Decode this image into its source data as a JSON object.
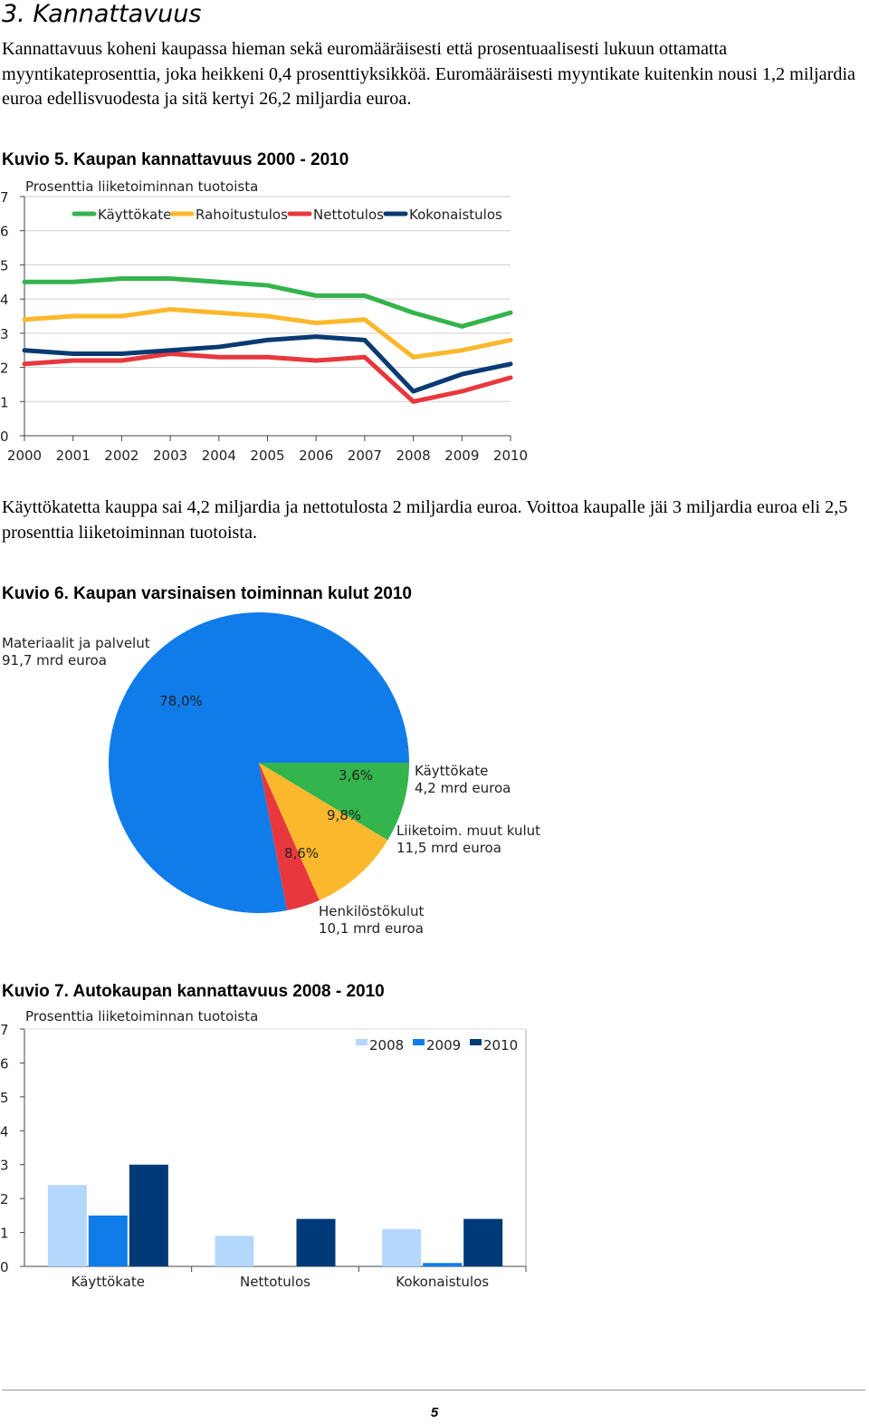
{
  "section_title": "3. Kannattavuus",
  "paragraph1": "Kannattavuus koheni kaupassa hieman sekä euromääräisesti että prosentuaalisesti lukuun ottamatta myyntikateprosenttia, joka heikkeni 0,4 prosenttiyksikköä. Euromääräisesti myyntikate kuitenkin nousi 1,2 miljardia euroa edellisvuodesta ja sitä kertyi 26,2 miljardia euroa.",
  "paragraph2": "Käyttökatetta kauppa sai 4,2 miljardia ja nettotulosta 2 miljardia euroa. Voittoa kaupalle jäi 3 miljardia euroa eli 2,5 prosenttia liiketoiminnan tuotoista.",
  "figure5_caption": "Kuvio 5. Kaupan kannattavuus 2000 - 2010",
  "figure6_caption": "Kuvio 6. Kaupan varsinaisen toiminnan kulut 2010",
  "figure7_caption": "Kuvio 7. Autokaupan kannattavuus 2008 - 2010",
  "page_number": "5",
  "chart_data": [
    {
      "type": "line",
      "ylabel": "Prosenttia liiketoiminnan tuotoista",
      "x": [
        "2000",
        "2001",
        "2002",
        "2003",
        "2004",
        "2005",
        "2006",
        "2007",
        "2008",
        "2009",
        "2010"
      ],
      "ylim": [
        0,
        7
      ],
      "yticks": [
        "0",
        "1",
        "2",
        "3",
        "4",
        "5",
        "6",
        "7"
      ],
      "legend_position": "top",
      "grid": true,
      "series": [
        {
          "name": "Käyttökate",
          "color": "#34b44c",
          "values": [
            4.5,
            4.5,
            4.6,
            4.6,
            4.5,
            4.4,
            4.1,
            4.1,
            3.6,
            3.2,
            3.6
          ]
        },
        {
          "name": "Rahoitustulos",
          "color": "#fbb82c",
          "values": [
            3.4,
            3.5,
            3.5,
            3.7,
            3.6,
            3.5,
            3.3,
            3.4,
            2.3,
            2.5,
            2.8
          ]
        },
        {
          "name": "Nettotulos",
          "color": "#e8383d",
          "values": [
            2.1,
            2.2,
            2.2,
            2.4,
            2.3,
            2.3,
            2.2,
            2.3,
            1.0,
            1.3,
            1.7
          ]
        },
        {
          "name": "Kokonaistulos",
          "color": "#0a3a72",
          "values": [
            2.5,
            2.4,
            2.4,
            2.5,
            2.6,
            2.8,
            2.9,
            2.8,
            1.3,
            1.8,
            2.1
          ]
        }
      ]
    },
    {
      "type": "pie",
      "slices": [
        {
          "label": "Materiaalit ja palvelut",
          "amount": "91,7 mrd euroa",
          "pct_label": "78,0%",
          "value": 78.0,
          "color": "#0f7cea"
        },
        {
          "label": "Käyttökate",
          "amount": "4,2 mrd euroa",
          "pct_label": "3,6%",
          "value": 3.6,
          "color": "#e8383d"
        },
        {
          "label": "Liiketoim. muut kulut",
          "amount": "11,5 mrd euroa",
          "pct_label": "9,8%",
          "value": 9.8,
          "color": "#fbb82c"
        },
        {
          "label": "Henkilöstökulut",
          "amount": "10,1 mrd euroa",
          "pct_label": "8,6%",
          "value": 8.6,
          "color": "#34b44c"
        }
      ]
    },
    {
      "type": "bar",
      "ylabel": "Prosenttia liiketoiminnan tuotoista",
      "categories": [
        "Käyttökate",
        "Nettotulos",
        "Kokonaistulos"
      ],
      "ylim": [
        0,
        7
      ],
      "yticks": [
        "0",
        "1",
        "2",
        "3",
        "4",
        "5",
        "6",
        "7"
      ],
      "legend_position": "top-right",
      "series": [
        {
          "name": "2008",
          "color": "#b4d8fb",
          "values": [
            2.4,
            0.9,
            1.1
          ]
        },
        {
          "name": "2009",
          "color": "#0f7cea",
          "values": [
            1.5,
            0.0,
            0.1
          ]
        },
        {
          "name": "2010",
          "color": "#003a78",
          "values": [
            3.0,
            1.4,
            1.4
          ]
        }
      ]
    }
  ]
}
